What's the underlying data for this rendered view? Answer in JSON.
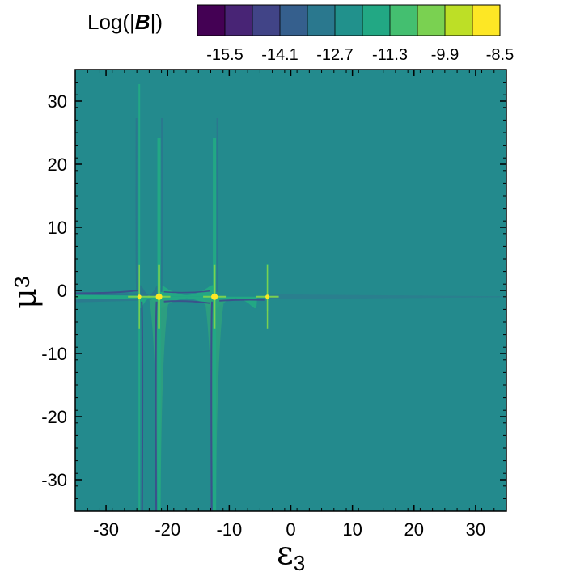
{
  "chart_data": {
    "type": "heatmap",
    "colorbar": {
      "title_prefix": "Log(|",
      "title_symbol": "B",
      "title_suffix": "|)",
      "levels": 11,
      "colors": [
        "#440154",
        "#482475",
        "#414487",
        "#355f8d",
        "#2a788e",
        "#21918c",
        "#22a884",
        "#44bf70",
        "#7ad151",
        "#bddf26",
        "#fde725"
      ],
      "tick_labels": [
        "-15.5",
        "-14.1",
        "-12.7",
        "-11.3",
        "-9.9",
        "-8.5"
      ]
    },
    "xaxis": {
      "label_main": "ε",
      "label_sub": "3",
      "range": [
        -35,
        35
      ],
      "ticks": [
        -30,
        -20,
        -10,
        0,
        10,
        20,
        30
      ]
    },
    "yaxis": {
      "label_main": "μ",
      "label_sub": "3",
      "range": [
        -35,
        35
      ],
      "ticks": [
        -30,
        -20,
        -10,
        0,
        10,
        20,
        30
      ]
    },
    "background_color": "#238a8d",
    "resonances": [
      {
        "epsilon": -24.6,
        "mu": -1.0
      },
      {
        "epsilon": -21.4,
        "mu": -1.0
      },
      {
        "epsilon": -12.4,
        "mu": -1.0
      },
      {
        "epsilon": -3.8,
        "mu": -1.0
      }
    ]
  }
}
